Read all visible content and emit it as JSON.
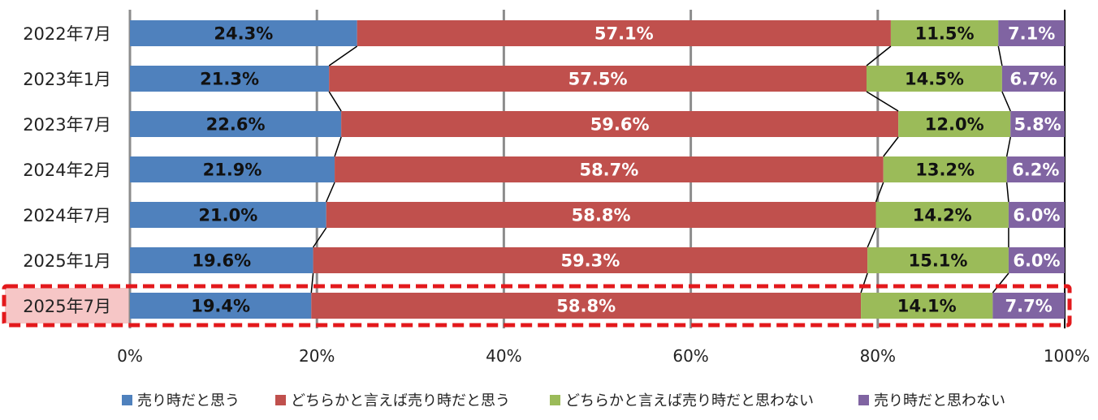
{
  "chart_data": {
    "type": "bar",
    "orientation": "horizontal",
    "stacked": true,
    "categories": [
      "2022年7月",
      "2023年1月",
      "2023年7月",
      "2024年2月",
      "2024年7月",
      "2025年1月",
      "2025年7月"
    ],
    "highlighted_category": "2025年7月",
    "series": [
      {
        "name": "売り時だと思う",
        "color": "#4F81BD",
        "label_color": "#111111",
        "values": [
          24.3,
          21.3,
          22.6,
          21.9,
          21.0,
          19.6,
          19.4
        ],
        "labels": [
          "24.3%",
          "21.3%",
          "22.6%",
          "21.9%",
          "21.0%",
          "19.6%",
          "19.4%"
        ]
      },
      {
        "name": "どちらかと言えば売り時だと思う",
        "color": "#C0504D",
        "label_color": "#ffffff",
        "values": [
          57.1,
          57.5,
          59.6,
          58.7,
          58.8,
          59.3,
          58.8
        ],
        "labels": [
          "57.1%",
          "57.5%",
          "59.6%",
          "58.7%",
          "58.8%",
          "59.3%",
          "58.8%"
        ]
      },
      {
        "name": "どちらかと言えば売り時だと思わない",
        "color": "#9BBB59",
        "label_color": "#111111",
        "values": [
          11.5,
          14.5,
          12.0,
          13.2,
          14.2,
          15.1,
          14.1
        ],
        "labels": [
          "11.5%",
          "14.5%",
          "12.0%",
          "13.2%",
          "14.2%",
          "15.1%",
          "14.1%"
        ]
      },
      {
        "name": "売り時だと思わない",
        "color": "#8064A2",
        "label_color": "#ffffff",
        "values": [
          7.1,
          6.7,
          5.8,
          6.2,
          6.0,
          6.0,
          7.7
        ],
        "labels": [
          "7.1%",
          "6.7%",
          "5.8%",
          "6.2%",
          "6.0%",
          "6.0%",
          "7.7%"
        ]
      }
    ],
    "xlim": [
      0,
      100
    ],
    "xticks": [
      0,
      20,
      40,
      60,
      80,
      100
    ],
    "xtick_labels": [
      "0%",
      "20%",
      "40%",
      "60%",
      "80%",
      "100%"
    ],
    "series_lines": true,
    "grid": true,
    "legend_position": "bottom",
    "highlight_color": "#E3191C",
    "highlight_fill": "#F6C6C6"
  }
}
